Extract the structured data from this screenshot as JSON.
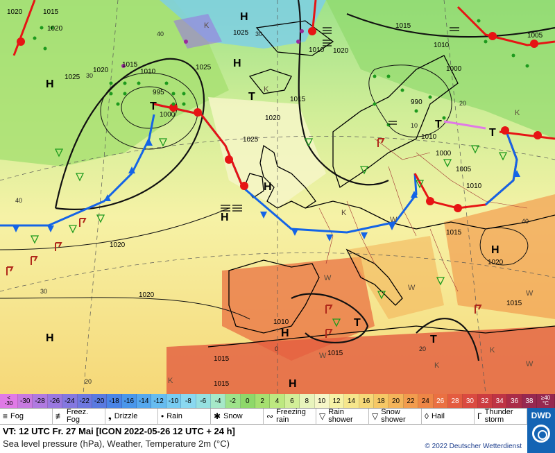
{
  "map": {
    "pressure_labels": [
      "1015",
      "1020",
      "1025",
      "1025",
      "1010",
      "1015",
      "1020",
      "1025",
      "1000",
      "995",
      "1010",
      "1020",
      "1020",
      "1020",
      "1025",
      "1010",
      "1005",
      "1000",
      "1015",
      "1010",
      "990",
      "1005",
      "1000",
      "1010",
      "1015",
      "1020",
      "1015",
      "1010",
      "1015",
      "1015",
      "1020",
      "1015",
      "1020",
      "1015"
    ],
    "isotherm_labels": [
      "30",
      "40",
      "40",
      "30",
      "20",
      "20",
      "0",
      "10",
      "40",
      "30",
      "20"
    ],
    "centers_high": [
      "H",
      "H",
      "H",
      "H",
      "H",
      "H",
      "H",
      "H",
      "H"
    ],
    "centers_low": [
      "T",
      "T",
      "T",
      "T",
      "T",
      "T"
    ],
    "k_marks": [
      "K",
      "K",
      "K",
      "K",
      "K",
      "K",
      "K"
    ],
    "w_marks": [
      "W",
      "W",
      "W",
      "W",
      "W",
      "W"
    ]
  },
  "colorbar": {
    "edge_low": [
      "<",
      "-30"
    ],
    "values": [
      "-30",
      "-28",
      "-26",
      "-24",
      "-22",
      "-20",
      "-18",
      "-16",
      "-14",
      "-12",
      "-10",
      "-8",
      "-6",
      "-4",
      "-2",
      "0",
      "2",
      "4",
      "6",
      "8",
      "10",
      "12",
      "14",
      "16",
      "18",
      "20",
      "22",
      "24",
      "26",
      "28",
      "30",
      "32",
      "34",
      "36",
      "38"
    ],
    "edge_high": [
      "≥40",
      "°C"
    ],
    "colors": [
      "#e07ae6",
      "#c87ae0",
      "#b07ae0",
      "#9a78e0",
      "#8478e0",
      "#6e78e0",
      "#5a7ae0",
      "#4a84e6",
      "#4a96ea",
      "#56a8ee",
      "#66bcf0",
      "#78ccf2",
      "#8ad8f0",
      "#96e0e0",
      "#a6e8c8",
      "#9ee28a",
      "#8ed86a",
      "#a6e070",
      "#bde880",
      "#d2ee98",
      "#e8f4bc",
      "#f6f6c8",
      "#f6f2a6",
      "#f6e68c",
      "#f6d878",
      "#f6c866",
      "#f4b45a",
      "#f29c4e",
      "#ee8646",
      "#ea7042",
      "#e45c40",
      "#da4a40",
      "#cc3c40",
      "#be3444",
      "#aa2c48",
      "#962850"
    ]
  },
  "legend": {
    "items": [
      {
        "icon": "fog-icon",
        "symbol": "≡",
        "label": "Fog"
      },
      {
        "icon": "freezing-fog-icon",
        "symbol": "≢",
        "label": "Freez. Fog"
      },
      {
        "icon": "drizzle-icon",
        "symbol": "❟",
        "label": "Drizzle"
      },
      {
        "icon": "rain-icon",
        "symbol": "•",
        "label": "Rain"
      },
      {
        "icon": "snow-icon",
        "symbol": "✱",
        "label": "Snow"
      },
      {
        "icon": "freezing-rain-icon",
        "symbol": "∾",
        "label": "Freezing rain"
      },
      {
        "icon": "rain-shower-icon",
        "symbol": "▽",
        "label": "Rain shower"
      },
      {
        "icon": "snow-shower-icon",
        "symbol": "▽",
        "label": "Snow shower"
      },
      {
        "icon": "hail-icon",
        "symbol": "◊",
        "label": "Hail"
      },
      {
        "icon": "thunderstorm-icon",
        "symbol": "Γ",
        "label": "Thunder storm"
      }
    ]
  },
  "footer": {
    "valid_line": "VT: 12 UTC Fr.  27 Mai [ICON 2022-05-26  12 UTC + 24 h]",
    "description": "Sea level pressure (hPa), Weather, Temperature 2m (°C)",
    "copyright": "© 2022 Deutscher Wetterdienst",
    "logo_text": "DWD"
  }
}
